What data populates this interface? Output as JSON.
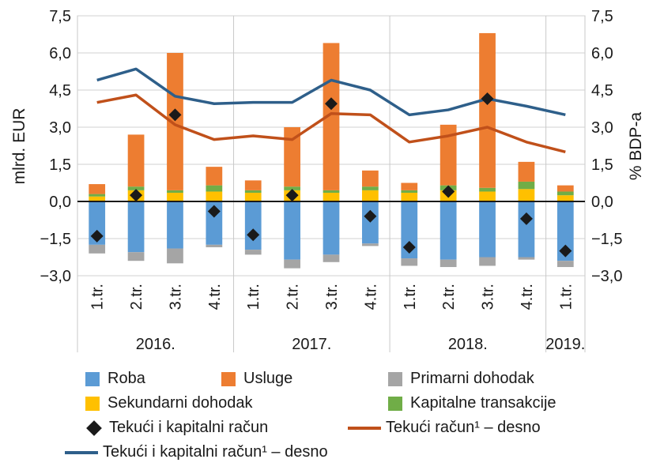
{
  "chart_data": {
    "type": "bar",
    "title": "",
    "ylabel_left": "mlrd. EUR",
    "ylabel_right": "% BDP-a",
    "ylim": [
      -3,
      7.5
    ],
    "yticks": [
      "7,5",
      "6,0",
      "4,5",
      "3,0",
      "1,5",
      "0,0",
      "−1,5",
      "−3,0"
    ],
    "ytick_values": [
      7.5,
      6.0,
      4.5,
      3.0,
      1.5,
      0.0,
      -1.5,
      -3.0
    ],
    "categories": [
      "1.tr.",
      "2.tr.",
      "3.tr.",
      "4.tr.",
      "1.tr.",
      "2.tr.",
      "3.tr.",
      "4.tr.",
      "1.tr.",
      "2.tr.",
      "3.tr.",
      "4.tr.",
      "1.tr."
    ],
    "year_groups": [
      {
        "label": "2016.",
        "count": 4
      },
      {
        "label": "2017.",
        "count": 4
      },
      {
        "label": "2018.",
        "count": 4
      },
      {
        "label": "2019.",
        "count": 1
      }
    ],
    "bar_series": [
      {
        "name": "Roba",
        "color": "#5b9bd5",
        "values": [
          -1.75,
          -2.05,
          -1.9,
          -1.75,
          -1.95,
          -2.35,
          -2.15,
          -1.7,
          -2.3,
          -2.35,
          -2.25,
          -2.25,
          -2.4
        ]
      },
      {
        "name": "Usluge",
        "color": "#ed7d31",
        "values": [
          0.4,
          2.1,
          5.55,
          0.75,
          0.4,
          2.4,
          5.95,
          0.65,
          0.3,
          2.45,
          6.25,
          0.8,
          0.25
        ]
      },
      {
        "name": "Primarni dohodak",
        "color": "#a5a5a5",
        "values": [
          -0.35,
          -0.35,
          -0.6,
          -0.1,
          -0.2,
          -0.35,
          -0.3,
          -0.1,
          -0.3,
          -0.3,
          -0.35,
          -0.1,
          -0.25
        ]
      },
      {
        "name": "Sekundarni dohodak",
        "color": "#ffc000",
        "values": [
          0.2,
          0.45,
          0.35,
          0.4,
          0.35,
          0.45,
          0.35,
          0.45,
          0.35,
          0.45,
          0.4,
          0.5,
          0.25
        ]
      },
      {
        "name": "Kapitalne transakcije",
        "color": "#70ad47",
        "values": [
          0.1,
          0.15,
          0.1,
          0.25,
          0.1,
          0.15,
          0.1,
          0.15,
          0.1,
          0.2,
          0.15,
          0.3,
          0.15
        ]
      }
    ],
    "marker_series": {
      "name": "Tekući i kapitalni račun",
      "color": "#1a1a1a",
      "values": [
        -1.4,
        0.25,
        3.5,
        -0.4,
        -1.35,
        0.25,
        3.95,
        -0.6,
        -1.85,
        0.4,
        4.15,
        -0.7,
        -2.0
      ]
    },
    "line_series": [
      {
        "name": "Tekući račun¹ – desno",
        "color": "#c0501a",
        "values": [
          4.0,
          4.3,
          3.1,
          2.5,
          2.65,
          2.5,
          3.55,
          3.5,
          2.4,
          2.65,
          3.0,
          2.4,
          2.0
        ]
      },
      {
        "name": "Tekući i kapitalni račun¹ – desno",
        "color": "#2e5f8a",
        "values": [
          4.9,
          5.35,
          4.25,
          3.95,
          4.0,
          4.0,
          4.9,
          4.5,
          3.5,
          3.7,
          4.15,
          3.85,
          3.5
        ]
      }
    ],
    "grid": true,
    "legend_position": "bottom"
  }
}
